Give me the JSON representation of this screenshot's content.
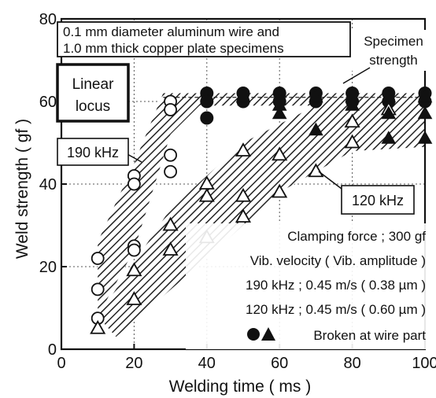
{
  "chart_data": {
    "type": "scatter",
    "xlabel": "Welding time   ( ms )",
    "ylabel": "Weld strength   ( gf )",
    "xlim": [
      0,
      100
    ],
    "ylim": [
      0,
      80
    ],
    "x_ticks": [
      "0",
      "20",
      "40",
      "60",
      "80",
      "100"
    ],
    "y_ticks": [
      "0",
      "20",
      "40",
      "60",
      "80"
    ],
    "grid": "dotted",
    "title_box": [
      "0.1 mm diameter aluminum wire and",
      "1.0 mm thick copper plate specimens"
    ],
    "annotations": {
      "specimen_strength": [
        "Specimen",
        "strength"
      ],
      "linear_locus": [
        "Linear",
        "locus"
      ],
      "label_190": "190 kHz",
      "label_120": "120 kHz",
      "conditions": [
        "Clamping force ; 300 gf",
        "Vib. velocity   ( Vib. amplitude )",
        "190 kHz ; 0.45 m/s   ( 0.38 µm )",
        "120 kHz ; 0.45 m/s   ( 0.60 µm )"
      ],
      "broken_legend": "Broken at wire part"
    },
    "specimen_strength_level": 61,
    "bands": [
      {
        "name": "190 kHz",
        "upper": [
          [
            10,
            26
          ],
          [
            20,
            45
          ],
          [
            28,
            62
          ],
          [
            100,
            62
          ]
        ],
        "lower": [
          [
            10,
            8
          ],
          [
            20,
            24
          ],
          [
            30,
            52
          ],
          [
            38,
            59
          ],
          [
            100,
            59
          ]
        ]
      },
      {
        "name": "120 kHz",
        "upper": [
          [
            10,
            8
          ],
          [
            30,
            34
          ],
          [
            50,
            50
          ],
          [
            70,
            59
          ],
          [
            100,
            60
          ]
        ],
        "lower": [
          [
            15,
            3
          ],
          [
            40,
            22
          ],
          [
            60,
            38
          ],
          [
            80,
            48
          ],
          [
            100,
            49
          ]
        ]
      }
    ],
    "series": [
      {
        "name": "190 kHz",
        "marker": "circle-open",
        "points": [
          [
            10,
            22
          ],
          [
            10,
            14.5
          ],
          [
            10,
            7.5
          ],
          [
            20,
            42
          ],
          [
            20,
            40
          ],
          [
            20,
            25
          ],
          [
            20,
            24
          ],
          [
            30,
            60
          ],
          [
            30,
            58
          ],
          [
            30,
            47
          ],
          [
            30,
            43
          ]
        ]
      },
      {
        "name": "190 kHz",
        "marker": "circle-filled",
        "points": [
          [
            40,
            62
          ],
          [
            40,
            60
          ],
          [
            40,
            56
          ],
          [
            50,
            62
          ],
          [
            50,
            60
          ],
          [
            60,
            62
          ],
          [
            60,
            60
          ],
          [
            70,
            62
          ],
          [
            70,
            60
          ],
          [
            80,
            62
          ],
          [
            80,
            60
          ],
          [
            90,
            62
          ],
          [
            90,
            60
          ],
          [
            100,
            62
          ],
          [
            100,
            60
          ]
        ]
      },
      {
        "name": "120 kHz",
        "marker": "triangle-open",
        "points": [
          [
            10,
            5
          ],
          [
            20,
            19
          ],
          [
            20,
            12
          ],
          [
            30,
            30
          ],
          [
            30,
            24
          ],
          [
            40,
            40
          ],
          [
            40,
            37
          ],
          [
            40,
            27
          ],
          [
            50,
            48
          ],
          [
            50,
            37
          ],
          [
            50,
            32
          ],
          [
            60,
            47
          ],
          [
            60,
            38
          ],
          [
            70,
            43
          ],
          [
            80,
            55
          ],
          [
            80,
            50
          ],
          [
            90,
            58
          ]
        ]
      },
      {
        "name": "120 kHz",
        "marker": "triangle-filled",
        "points": [
          [
            50,
            61
          ],
          [
            60,
            59
          ],
          [
            60,
            57
          ],
          [
            70,
            61
          ],
          [
            70,
            53
          ],
          [
            80,
            61
          ],
          [
            80,
            59
          ],
          [
            90,
            61
          ],
          [
            90,
            57
          ],
          [
            90,
            51
          ],
          [
            100,
            61
          ],
          [
            100,
            57
          ],
          [
            100,
            51
          ]
        ]
      }
    ]
  }
}
